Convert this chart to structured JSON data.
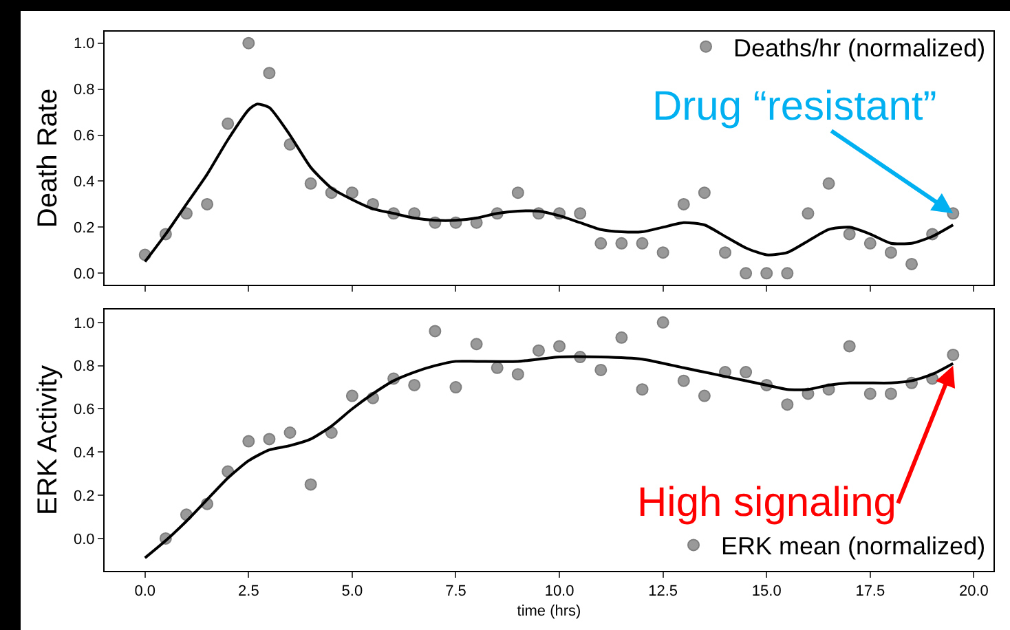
{
  "chart_data": [
    {
      "type": "scatter",
      "ylabel": "Death Rate",
      "x": [
        0,
        0.5,
        1,
        1.5,
        2,
        2.5,
        3,
        3.5,
        4,
        4.5,
        5,
        5.5,
        6,
        6.5,
        7,
        7.5,
        8,
        8.5,
        9,
        9.5,
        10,
        10.5,
        11,
        11.5,
        12,
        12.5,
        13,
        13.5,
        14,
        14.5,
        15,
        15.5,
        16,
        16.5,
        17,
        17.5,
        18,
        18.5,
        19,
        19.5
      ],
      "series": [
        {
          "name": "Deaths/hr (normalized)",
          "color": "#999999",
          "marker": "circle",
          "values": [
            0.08,
            0.17,
            0.26,
            0.3,
            0.65,
            1.0,
            0.87,
            0.56,
            0.39,
            0.35,
            0.35,
            0.3,
            0.26,
            0.26,
            0.22,
            0.22,
            0.22,
            0.26,
            0.35,
            0.26,
            0.26,
            0.26,
            0.13,
            0.13,
            0.13,
            0.09,
            0.3,
            0.35,
            0.09,
            0,
            0,
            0,
            0.26,
            0.39,
            0.17,
            0.13,
            0.09,
            0.04,
            0.17,
            0.26
          ]
        },
        {
          "type": "line",
          "color": "#000000",
          "x": [
            0,
            0.5,
            1,
            1.5,
            2,
            2.5,
            2.7,
            3,
            3.5,
            4,
            4.5,
            5,
            5.5,
            6,
            6.5,
            7,
            7.5,
            8,
            8.5,
            9,
            9.5,
            10,
            10.5,
            11,
            11.5,
            12,
            12.5,
            13,
            13.5,
            14,
            14.5,
            15,
            15.5,
            16,
            16.5,
            17,
            17.5,
            18,
            18.5,
            19,
            19.5
          ],
          "values": [
            0.05,
            0.17,
            0.3,
            0.43,
            0.58,
            0.71,
            0.735,
            0.72,
            0.6,
            0.46,
            0.37,
            0.32,
            0.28,
            0.26,
            0.24,
            0.23,
            0.23,
            0.24,
            0.26,
            0.27,
            0.27,
            0.25,
            0.22,
            0.19,
            0.18,
            0.18,
            0.2,
            0.22,
            0.21,
            0.16,
            0.11,
            0.08,
            0.09,
            0.14,
            0.19,
            0.2,
            0.17,
            0.13,
            0.13,
            0.16,
            0.21
          ]
        }
      ],
      "xlim": [
        -0.975,
        20.475
      ],
      "xticks": [
        {
          "value": 0,
          "label": null
        },
        {
          "value": 2.5,
          "label": null
        },
        {
          "value": 5,
          "label": null
        },
        {
          "value": 7.5,
          "label": null
        },
        {
          "value": 10,
          "label": null
        },
        {
          "value": 12.5,
          "label": null
        },
        {
          "value": 15,
          "label": null
        },
        {
          "value": 17.5,
          "label": null
        },
        {
          "value": 20,
          "label": null
        }
      ],
      "ylim": [
        -0.05,
        1.05
      ],
      "yticks": [
        {
          "value": 0,
          "label": "0.0"
        },
        {
          "value": 0.2,
          "label": "0.2"
        },
        {
          "value": 0.4,
          "label": "0.4"
        },
        {
          "value": 0.6,
          "label": "0.6"
        },
        {
          "value": 0.8,
          "label": "0.8"
        },
        {
          "value": 1,
          "label": "1.0"
        }
      ],
      "tick_labels": "y",
      "legend": "top right",
      "grid": false,
      "annotations": [
        {
          "text": "Drug “resistant”",
          "x": 19.5,
          "y": 0.26
        }
      ]
    },
    {
      "type": "scatter",
      "ylabel": "ERK Activity",
      "xlabel": "time (hrs)",
      "x": [
        0.5,
        1,
        1.5,
        2,
        2.5,
        3,
        3.5,
        4,
        4.5,
        5,
        5.5,
        6,
        6.5,
        7,
        7.5,
        8,
        8.5,
        9,
        9.5,
        10,
        10.5,
        11,
        11.5,
        12,
        12.5,
        13,
        13.5,
        14,
        14.5,
        15,
        15.5,
        16,
        16.5,
        17,
        17.5,
        18,
        18.5,
        19,
        19.5
      ],
      "series": [
        {
          "name": "ERK mean (normalized)",
          "color": "#999999",
          "marker": "circle",
          "values": [
            0,
            0.11,
            0.16,
            0.31,
            0.45,
            0.46,
            0.49,
            0.25,
            0.49,
            0.66,
            0.65,
            0.74,
            0.71,
            0.96,
            0.7,
            0.9,
            0.79,
            0.76,
            0.87,
            0.89,
            0.84,
            0.78,
            0.93,
            0.69,
            1.0,
            0.73,
            0.66,
            0.77,
            0.77,
            0.71,
            0.62,
            0.67,
            0.69,
            0.89,
            0.67,
            0.67,
            0.72,
            0.74,
            0.85
          ]
        },
        {
          "type": "line",
          "color": "#000000",
          "x": [
            0,
            0.5,
            1,
            1.5,
            2,
            2.5,
            3,
            3.5,
            4,
            4.5,
            5,
            5.5,
            6,
            6.5,
            7,
            7.5,
            8,
            9,
            10,
            11,
            12,
            13,
            14,
            15,
            15.5,
            16,
            16.5,
            17,
            18,
            18.5,
            19,
            19.5
          ],
          "values": [
            -0.09,
            -0.01,
            0.08,
            0.18,
            0.28,
            0.36,
            0.41,
            0.43,
            0.46,
            0.52,
            0.6,
            0.67,
            0.73,
            0.77,
            0.8,
            0.82,
            0.82,
            0.82,
            0.84,
            0.84,
            0.83,
            0.79,
            0.75,
            0.71,
            0.69,
            0.69,
            0.71,
            0.72,
            0.72,
            0.73,
            0.76,
            0.81
          ]
        }
      ],
      "xlim": [
        -0.975,
        20.475
      ],
      "xticks": [
        {
          "value": 0,
          "label": "0.0"
        },
        {
          "value": 2.5,
          "label": "2.5"
        },
        {
          "value": 5,
          "label": "5.0"
        },
        {
          "value": 7.5,
          "label": "7.5"
        },
        {
          "value": 10,
          "label": "10.0"
        },
        {
          "value": 12.5,
          "label": "12.5"
        },
        {
          "value": 15,
          "label": "15.0"
        },
        {
          "value": 17.5,
          "label": "17.5"
        },
        {
          "value": 20,
          "label": "20.0"
        }
      ],
      "ylim": [
        -0.15,
        1.06
      ],
      "yticks": [
        {
          "value": 0,
          "label": "0.0"
        },
        {
          "value": 0.2,
          "label": "0.2"
        },
        {
          "value": 0.4,
          "label": "0.4"
        },
        {
          "value": 0.6,
          "label": "0.6"
        },
        {
          "value": 0.8,
          "label": "0.8"
        },
        {
          "value": 1,
          "label": "1.0"
        }
      ],
      "legend": "bottom right",
      "grid": false,
      "annotations": [
        {
          "text": "High signaling",
          "x": 19.5,
          "y": 0.8
        }
      ]
    }
  ]
}
